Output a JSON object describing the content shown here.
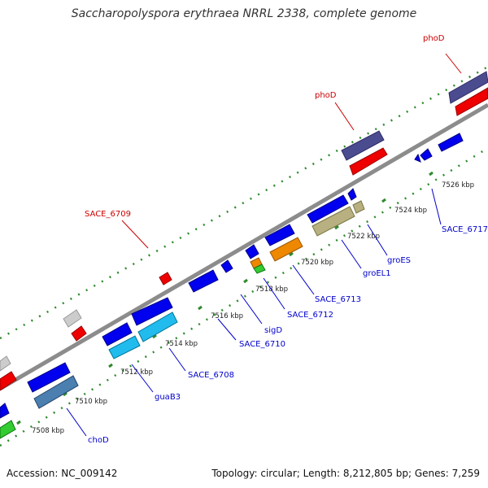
{
  "title": "Saccharopolyspora erythraea NRRL 2338, complete genome",
  "footer": {
    "accession": "Accession: NC_009142",
    "stats": "Topology: circular; Length: 8,212,805 bp; Genes: 7,259"
  },
  "colors": {
    "backbone": "#8c8c8c",
    "tick_dots": "#2e8b2e",
    "label_upper": "#cc0000",
    "label_lower": "#0000cc",
    "gene_blue": "#0000ee",
    "gene_red": "#ee0000",
    "gene_purple": "#4b4b8f",
    "gene_gray": "#cccccc",
    "gene_green": "#33cc33",
    "gene_cyan": "#22bbee",
    "gene_steel": "#4a7fb0",
    "gene_orange": "#ee8800",
    "gene_khaki": "#b8b080"
  },
  "scale_ticks": [
    "7508 kbp",
    "7510 kbp",
    "7512 kbp",
    "7514 kbp",
    "7516 kbp",
    "7518 kbp",
    "7520 kbp",
    "7522 kbp",
    "7524 kbp",
    "7526 kbp"
  ],
  "gene_labels_upper": [
    "phoD",
    "phoD",
    "SACE_6709"
  ],
  "gene_labels_lower": [
    "choD",
    "guaB3",
    "SACE_6708",
    "SACE_6710",
    "sigD",
    "SACE_6712",
    "SACE_6713",
    "groEL1",
    "groES",
    "SACE_6717"
  ]
}
